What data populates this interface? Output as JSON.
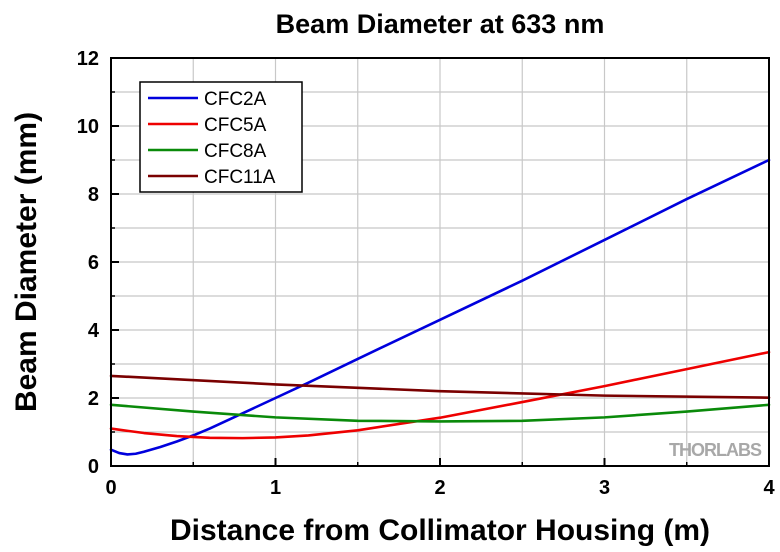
{
  "watermark": "THORLABS",
  "chart_data": {
    "type": "line",
    "title": "Beam Diameter at 633 nm",
    "xlabel": "Distance from Collimator Housing (m)",
    "ylabel": "Beam Diameter (mm)",
    "xlim": [
      0,
      4
    ],
    "ylim": [
      0,
      12
    ],
    "xticks": [
      0,
      1,
      2,
      3,
      4
    ],
    "yticks": [
      0,
      2,
      4,
      6,
      8,
      10,
      12
    ],
    "grid": true,
    "legend_position": "top-left",
    "series": [
      {
        "name": "CFC2A",
        "color": "#0000dd",
        "x": [
          0,
          0.05,
          0.1,
          0.15,
          0.2,
          0.3,
          0.4,
          0.5,
          0.6,
          0.8,
          1.0,
          1.2,
          1.5,
          2.0,
          2.5,
          3.0,
          3.5,
          4.0
        ],
        "y": [
          0.48,
          0.38,
          0.34,
          0.36,
          0.42,
          0.56,
          0.72,
          0.9,
          1.1,
          1.55,
          2.0,
          2.45,
          3.15,
          4.3,
          5.45,
          6.65,
          7.85,
          9.0
        ]
      },
      {
        "name": "CFC5A",
        "color": "#ee0000",
        "x": [
          0,
          0.2,
          0.4,
          0.6,
          0.8,
          1.0,
          1.2,
          1.5,
          2.0,
          2.5,
          3.0,
          3.5,
          4.0
        ],
        "y": [
          1.1,
          0.97,
          0.88,
          0.83,
          0.82,
          0.84,
          0.9,
          1.05,
          1.42,
          1.88,
          2.35,
          2.85,
          3.35
        ]
      },
      {
        "name": "CFC8A",
        "color": "#0a8a0a",
        "x": [
          0,
          0.5,
          1.0,
          1.5,
          2.0,
          2.5,
          3.0,
          3.5,
          4.0
        ],
        "y": [
          1.8,
          1.6,
          1.43,
          1.33,
          1.31,
          1.33,
          1.43,
          1.6,
          1.8
        ]
      },
      {
        "name": "CFC11A",
        "color": "#7a0000",
        "x": [
          0,
          1.0,
          2.0,
          3.0,
          4.0
        ],
        "y": [
          2.65,
          2.4,
          2.2,
          2.07,
          2.01
        ]
      }
    ]
  }
}
